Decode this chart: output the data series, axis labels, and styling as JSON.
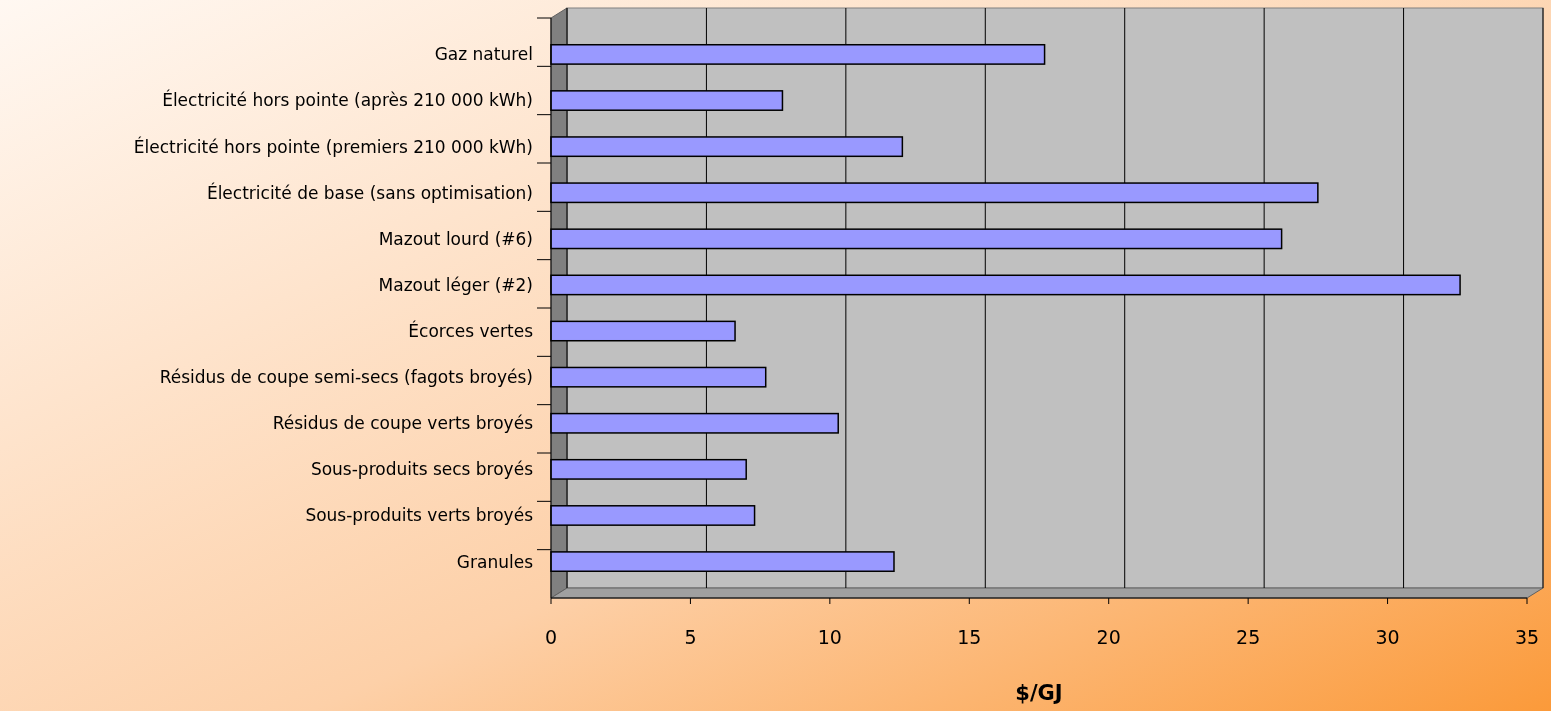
{
  "chart_data": {
    "type": "bar",
    "orientation": "horizontal",
    "xlabel": "$/GJ",
    "categories": [
      "Gaz naturel",
      "Électricité hors pointe (après 210 000 kWh)",
      "Électricité hors pointe (premiers 210 000 kWh)",
      "Électricité de base (sans optimisation)",
      "Mazout lourd (#6)",
      "Mazout léger (#2)",
      "Écorces vertes",
      "Résidus de coupe semi-secs (fagots broyés)",
      "Résidus de coupe verts broyés",
      "Sous-produits secs broyés",
      "Sous-produits verts broyés",
      "Granules"
    ],
    "values": [
      17.7,
      8.3,
      12.6,
      27.5,
      26.2,
      32.6,
      6.6,
      7.7,
      10.3,
      7.0,
      7.3,
      12.3
    ],
    "color": "#9999ff",
    "xlim": [
      0,
      35
    ],
    "xticks": [
      0,
      5,
      10,
      15,
      20,
      25,
      30,
      35
    ],
    "grid": "x"
  }
}
